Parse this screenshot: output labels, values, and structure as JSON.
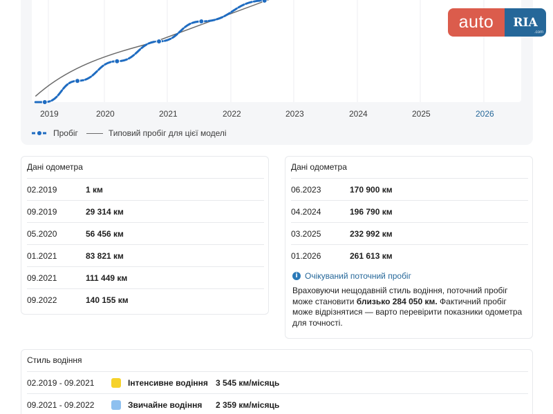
{
  "chart_data": {
    "type": "line",
    "x_ticks": [
      "2019",
      "2020",
      "2021",
      "2022",
      "2023",
      "2024",
      "2025",
      "2026"
    ],
    "current_year": "2026",
    "series": [
      {
        "name": "Пробіг",
        "x": [
          "2018-12",
          "2019-02",
          "2019-09",
          "2020-05",
          "2021-01",
          "2021-09",
          "2022-09"
        ],
        "values": [
          1,
          1,
          29314,
          56456,
          83821,
          111449,
          140155
        ],
        "color": "#1f6cc1",
        "style": "thick-dotted"
      },
      {
        "name": "Типовий пробіг для цієї моделі",
        "x": [
          "2018-12",
          "2023-01"
        ],
        "values": [
          8000,
          150000
        ],
        "color": "#6a6a6a",
        "style": "thin"
      }
    ],
    "legend": {
      "placement": "bottom-left"
    },
    "grid": "vertical"
  },
  "logo": {
    "auto": "auto",
    "ria": "RIA",
    "com": ".com"
  },
  "odometer_left": {
    "title": "Дані одометра",
    "rows": [
      {
        "date": "02.2019",
        "km": "1 км"
      },
      {
        "date": "09.2019",
        "km": "29 314 км"
      },
      {
        "date": "05.2020",
        "km": "56 456 км"
      },
      {
        "date": "01.2021",
        "km": "83 821 км"
      },
      {
        "date": "09.2021",
        "km": "111 449 км"
      },
      {
        "date": "09.2022",
        "km": "140 155 км"
      }
    ]
  },
  "odometer_right": {
    "title": "Дані одометра",
    "rows": [
      {
        "date": "06.2023",
        "km": "170 900 км"
      },
      {
        "date": "04.2024",
        "km": "196 790 км"
      },
      {
        "date": "03.2025",
        "km": "232 992 км"
      },
      {
        "date": "01.2026",
        "km": "261 613 км"
      }
    ],
    "notice_title": "Очікуваний поточний пробіг",
    "notice_text_1": "Враховуючи нещодавній стиль водіння, поточний пробіг може становити ",
    "notice_value": "близько 284 050 км.",
    "notice_text_2": " Фактичний пробіг може відрізнятися — варто перевірити показники одометра для точності."
  },
  "driving_style": {
    "title": "Стиль водіння",
    "rows": [
      {
        "period": "02.2019 - 09.2021",
        "type": "Інтенсивне водіння",
        "rate": "3 545 км/місяць",
        "color": "#f6d22a"
      },
      {
        "period": "09.2021 - 09.2022",
        "type": "Звичайне водіння",
        "rate": "2 359 км/місяць",
        "color": "#8ec0ef"
      }
    ]
  }
}
